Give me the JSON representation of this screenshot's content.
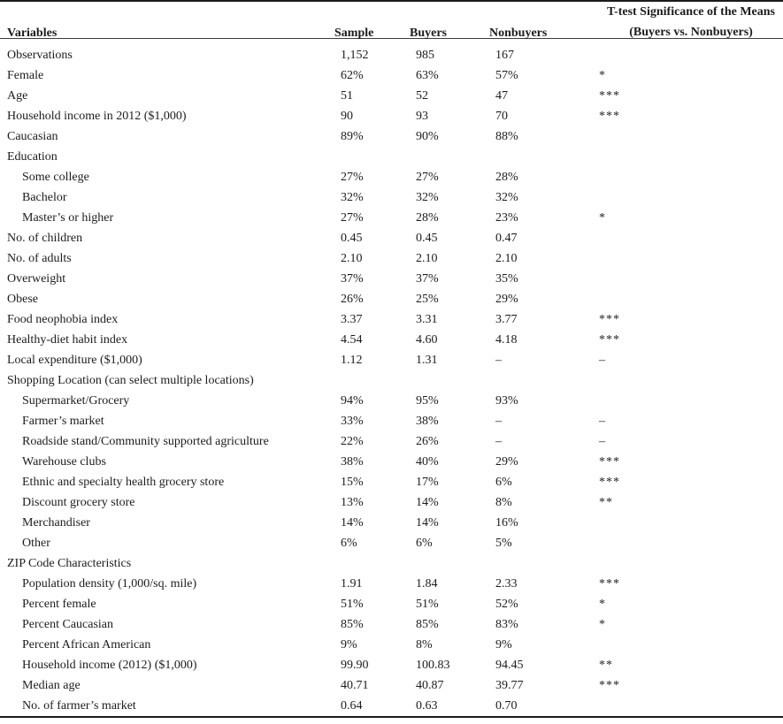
{
  "table": {
    "columns": {
      "variables": "Variables",
      "sample": "Sample",
      "buyers": "Buyers",
      "nonbuyers": "Nonbuyers",
      "ttest_line1": "T-test Significance of the Means",
      "ttest_line2": "(Buyers vs. Nonbuyers)"
    },
    "rows": [
      {
        "label": "Observations",
        "indent": false,
        "sample": "1,152",
        "buyers": "985",
        "nonbuyers": "167",
        "sig": ""
      },
      {
        "label": "Female",
        "indent": false,
        "sample": "62%",
        "buyers": "63%",
        "nonbuyers": "57%",
        "sig": "*"
      },
      {
        "label": "Age",
        "indent": false,
        "sample": "51",
        "buyers": "52",
        "nonbuyers": "47",
        "sig": "***"
      },
      {
        "label": "Household income in 2012 ($1,000)",
        "indent": false,
        "sample": "90",
        "buyers": "93",
        "nonbuyers": "70",
        "sig": "***"
      },
      {
        "label": "Caucasian",
        "indent": false,
        "sample": "89%",
        "buyers": "90%",
        "nonbuyers": "88%",
        "sig": ""
      },
      {
        "label": "Education",
        "indent": false,
        "section": true,
        "sample": "",
        "buyers": "",
        "nonbuyers": "",
        "sig": ""
      },
      {
        "label": "Some college",
        "indent": true,
        "sample": "27%",
        "buyers": "27%",
        "nonbuyers": "28%",
        "sig": ""
      },
      {
        "label": "Bachelor",
        "indent": true,
        "sample": "32%",
        "buyers": "32%",
        "nonbuyers": "32%",
        "sig": ""
      },
      {
        "label": "Master’s or higher",
        "indent": true,
        "sample": "27%",
        "buyers": "28%",
        "nonbuyers": "23%",
        "sig": "*"
      },
      {
        "label": "No. of children",
        "indent": false,
        "sample": "0.45",
        "buyers": "0.45",
        "nonbuyers": "0.47",
        "sig": ""
      },
      {
        "label": "No. of adults",
        "indent": false,
        "sample": "2.10",
        "buyers": "2.10",
        "nonbuyers": "2.10",
        "sig": ""
      },
      {
        "label": "Overweight",
        "indent": false,
        "sample": "37%",
        "buyers": "37%",
        "nonbuyers": "35%",
        "sig": ""
      },
      {
        "label": "Obese",
        "indent": false,
        "sample": "26%",
        "buyers": "25%",
        "nonbuyers": "29%",
        "sig": ""
      },
      {
        "label": "Food neophobia index",
        "indent": false,
        "sample": "3.37",
        "buyers": "3.31",
        "nonbuyers": "3.77",
        "sig": "***"
      },
      {
        "label": "Healthy-diet habit index",
        "indent": false,
        "sample": "4.54",
        "buyers": "4.60",
        "nonbuyers": "4.18",
        "sig": "***"
      },
      {
        "label": "Local expenditure ($1,000)",
        "indent": false,
        "sample": "1.12",
        "buyers": "1.31",
        "nonbuyers": "–",
        "sig": "–"
      },
      {
        "label": "Shopping Location (can select multiple locations)",
        "indent": false,
        "section": true,
        "sample": "",
        "buyers": "",
        "nonbuyers": "",
        "sig": ""
      },
      {
        "label": "Supermarket/Grocery",
        "indent": true,
        "sample": "94%",
        "buyers": "95%",
        "nonbuyers": "93%",
        "sig": ""
      },
      {
        "label": "Farmer’s market",
        "indent": true,
        "sample": "33%",
        "buyers": "38%",
        "nonbuyers": "–",
        "sig": "–"
      },
      {
        "label": "Roadside stand/Community supported agriculture",
        "indent": true,
        "sample": "22%",
        "buyers": "26%",
        "nonbuyers": "–",
        "sig": "–"
      },
      {
        "label": "Warehouse clubs",
        "indent": true,
        "sample": "38%",
        "buyers": "40%",
        "nonbuyers": "29%",
        "sig": "***"
      },
      {
        "label": "Ethnic and specialty health grocery store",
        "indent": true,
        "sample": "15%",
        "buyers": "17%",
        "nonbuyers": "6%",
        "sig": "***"
      },
      {
        "label": "Discount grocery store",
        "indent": true,
        "sample": "13%",
        "buyers": "14%",
        "nonbuyers": "8%",
        "sig": "**"
      },
      {
        "label": "Merchandiser",
        "indent": true,
        "sample": "14%",
        "buyers": "14%",
        "nonbuyers": "16%",
        "sig": ""
      },
      {
        "label": "Other",
        "indent": true,
        "sample": "6%",
        "buyers": "6%",
        "nonbuyers": "5%",
        "sig": ""
      },
      {
        "label": "ZIP Code Characteristics",
        "indent": false,
        "section": true,
        "sample": "",
        "buyers": "",
        "nonbuyers": "",
        "sig": ""
      },
      {
        "label": "Population density (1,000/sq. mile)",
        "indent": true,
        "sample": "1.91",
        "buyers": "1.84",
        "nonbuyers": "2.33",
        "sig": "***"
      },
      {
        "label": "Percent female",
        "indent": true,
        "sample": "51%",
        "buyers": "51%",
        "nonbuyers": "52%",
        "sig": "*"
      },
      {
        "label": "Percent Caucasian",
        "indent": true,
        "sample": "85%",
        "buyers": "85%",
        "nonbuyers": "83%",
        "sig": "*"
      },
      {
        "label": "Percent African American",
        "indent": true,
        "sample": "9%",
        "buyers": "8%",
        "nonbuyers": "9%",
        "sig": ""
      },
      {
        "label": "Household income (2012) ($1,000)",
        "indent": true,
        "sample": "99.90",
        "buyers": "100.83",
        "nonbuyers": "94.45",
        "sig": "**"
      },
      {
        "label": "Median age",
        "indent": true,
        "sample": "40.71",
        "buyers": "40.87",
        "nonbuyers": "39.77",
        "sig": "***"
      },
      {
        "label": "No. of farmer’s market",
        "indent": true,
        "sample": "0.64",
        "buyers": "0.63",
        "nonbuyers": "0.70",
        "sig": ""
      }
    ]
  }
}
